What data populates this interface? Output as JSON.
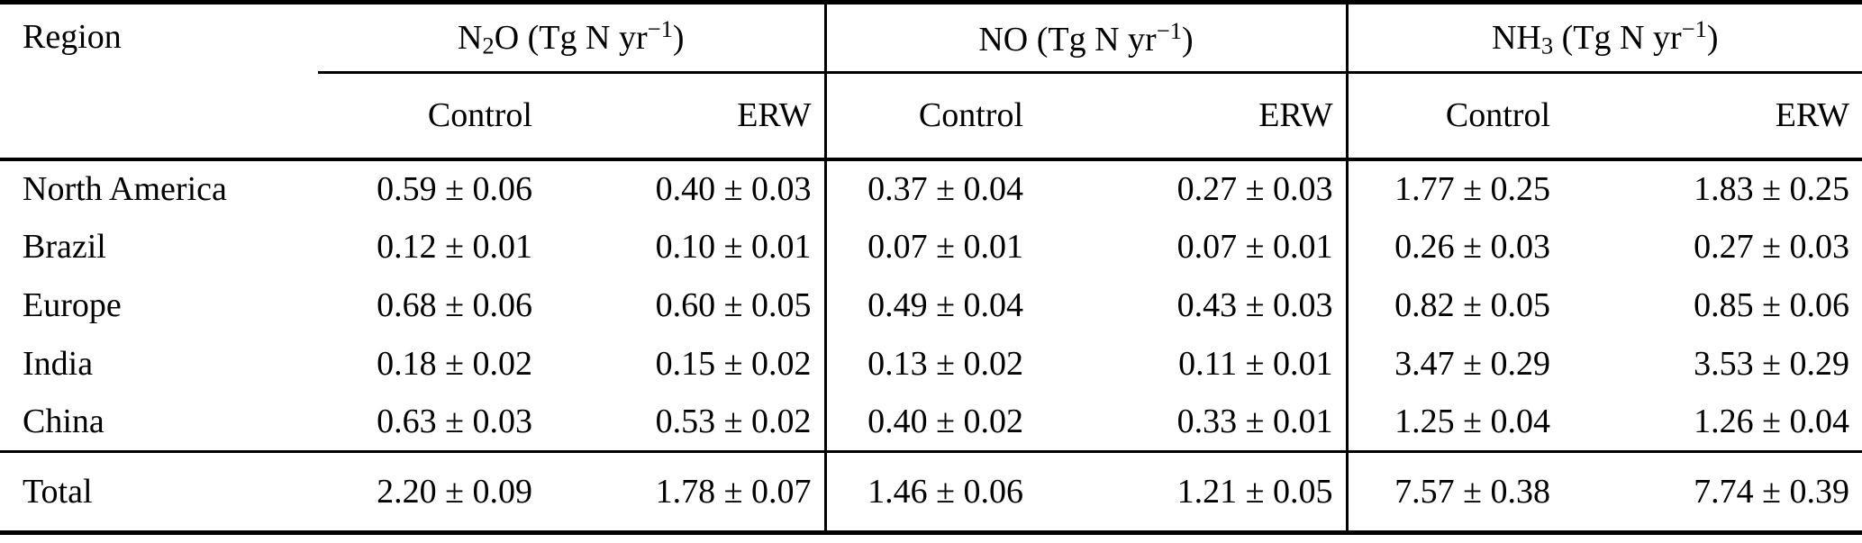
{
  "table": {
    "region_header": "Region",
    "groups": [
      {
        "name": "N2O",
        "title_segments": [
          {
            "t": "N"
          },
          {
            "t": "2",
            "s": "sub"
          },
          {
            "t": "O (Tg N yr"
          },
          {
            "t": "−1",
            "s": "sup"
          },
          {
            "t": ")"
          }
        ],
        "columns": [
          "Control",
          "ERW"
        ]
      },
      {
        "name": "NO",
        "title_segments": [
          {
            "t": "NO (Tg N yr"
          },
          {
            "t": "−1",
            "s": "sup"
          },
          {
            "t": ")"
          }
        ],
        "columns": [
          "Control",
          "ERW"
        ]
      },
      {
        "name": "NH3",
        "title_segments": [
          {
            "t": "NH"
          },
          {
            "t": "3",
            "s": "sub"
          },
          {
            "t": " (Tg N yr"
          },
          {
            "t": "−1",
            "s": "sup"
          },
          {
            "t": ")"
          }
        ],
        "columns": [
          "Control",
          "ERW"
        ]
      }
    ],
    "rows": [
      {
        "region": "North America",
        "values": [
          "0.59 ± 0.06",
          "0.40 ± 0.03",
          "0.37 ± 0.04",
          "0.27 ± 0.03",
          "1.77 ± 0.25",
          "1.83 ± 0.25"
        ]
      },
      {
        "region": "Brazil",
        "values": [
          "0.12 ± 0.01",
          "0.10 ± 0.01",
          "0.07 ± 0.01",
          "0.07 ± 0.01",
          "0.26 ± 0.03",
          "0.27 ± 0.03"
        ]
      },
      {
        "region": "Europe",
        "values": [
          "0.68 ± 0.06",
          "0.60 ± 0.05",
          "0.49 ± 0.04",
          "0.43 ± 0.03",
          "0.82 ± 0.05",
          "0.85 ± 0.06"
        ]
      },
      {
        "region": "India",
        "values": [
          "0.18 ± 0.02",
          "0.15 ± 0.02",
          "0.13 ± 0.02",
          "0.11 ± 0.01",
          "3.47 ± 0.29",
          "3.53 ± 0.29"
        ]
      },
      {
        "region": "China",
        "values": [
          "0.63 ± 0.03",
          "0.53 ± 0.02",
          "0.40 ± 0.02",
          "0.33 ± 0.01",
          "1.25 ± 0.04",
          "1.26 ± 0.04"
        ]
      }
    ],
    "total_row": {
      "region": "Total",
      "values": [
        "2.20 ± 0.09",
        "1.78 ± 0.07",
        "1.46 ± 0.06",
        "1.21 ± 0.05",
        "7.57 ± 0.38",
        "7.74 ± 0.39"
      ]
    }
  }
}
